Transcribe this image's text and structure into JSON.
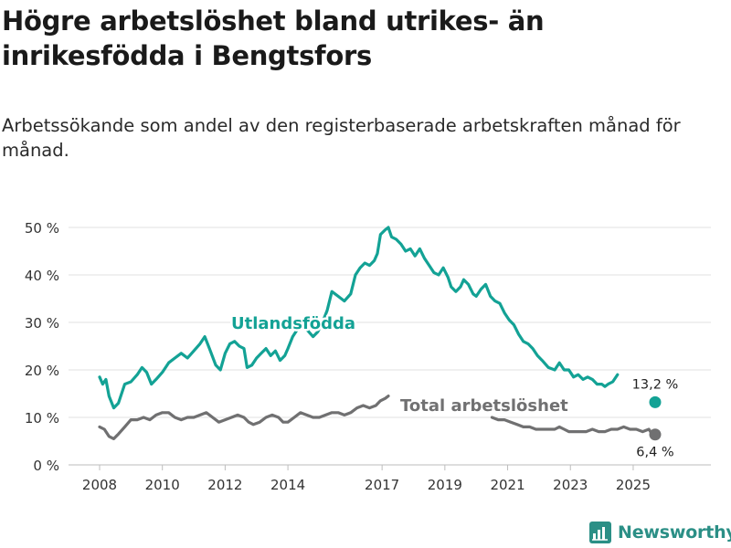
{
  "title": "Högre arbetslöshet bland utrikes- än inrikesfödda i Bengtsfors",
  "subtitle": "Arbetssökande som andel av den registerbaserade arbetskraften månad för månad.",
  "brand": "Newsworthy",
  "colors": {
    "foreign": "#13a295",
    "total": "#707071",
    "brand": "#2b8f86",
    "grid": "#e2e2e2"
  },
  "chart_data": {
    "type": "line",
    "title": "Högre arbetslöshet bland utrikes- än inrikesfödda i Bengtsfors",
    "xlabel": "",
    "ylabel": "",
    "x_ticks": [
      "2008",
      "2010",
      "2012",
      "2014",
      "2017",
      "2019",
      "2021",
      "2023",
      "2025"
    ],
    "y_ticks": [
      "0 %",
      "10 %",
      "20 %",
      "30 %",
      "40 %",
      "50 %"
    ],
    "y_tick_values": [
      0,
      10,
      20,
      30,
      40,
      50
    ],
    "xlim": [
      2007.4,
      2026.3
    ],
    "ylim": [
      0,
      50
    ],
    "series": [
      {
        "name": "Utlandsfödda",
        "end_label": "13,2 %",
        "end_point": [
          2025.7,
          13.2
        ],
        "points": [
          [
            2008.0,
            18.5
          ],
          [
            2008.1,
            17.0
          ],
          [
            2008.2,
            18.0
          ],
          [
            2008.3,
            14.5
          ],
          [
            2008.45,
            12.0
          ],
          [
            2008.6,
            13.0
          ],
          [
            2008.8,
            17.0
          ],
          [
            2009.0,
            17.5
          ],
          [
            2009.2,
            19.0
          ],
          [
            2009.35,
            20.5
          ],
          [
            2009.5,
            19.5
          ],
          [
            2009.65,
            17.0
          ],
          [
            2009.8,
            18.0
          ],
          [
            2010.0,
            19.5
          ],
          [
            2010.2,
            21.5
          ],
          [
            2010.4,
            22.5
          ],
          [
            2010.6,
            23.5
          ],
          [
            2010.8,
            22.5
          ],
          [
            2011.0,
            24.0
          ],
          [
            2011.2,
            25.5
          ],
          [
            2011.35,
            27.0
          ],
          [
            2011.5,
            24.5
          ],
          [
            2011.7,
            21.0
          ],
          [
            2011.85,
            20.0
          ],
          [
            2012.0,
            23.5
          ],
          [
            2012.15,
            25.5
          ],
          [
            2012.3,
            26.0
          ],
          [
            2012.45,
            25.0
          ],
          [
            2012.6,
            24.5
          ],
          [
            2012.7,
            20.5
          ],
          [
            2012.85,
            21.0
          ],
          [
            2013.0,
            22.5
          ],
          [
            2013.15,
            23.5
          ],
          [
            2013.3,
            24.5
          ],
          [
            2013.45,
            23.0
          ],
          [
            2013.6,
            24.0
          ],
          [
            2013.75,
            22.0
          ],
          [
            2013.9,
            23.0
          ],
          [
            2014.0,
            24.5
          ],
          [
            2014.15,
            27.0
          ],
          [
            2014.3,
            28.5
          ],
          [
            2014.45,
            29.5
          ],
          [
            2014.6,
            28.5
          ],
          [
            2014.8,
            27.0
          ],
          [
            2014.95,
            28.0
          ],
          [
            2015.1,
            30.0
          ],
          [
            2015.25,
            32.5
          ],
          [
            2015.4,
            36.5
          ],
          [
            2015.6,
            35.5
          ],
          [
            2015.8,
            34.5
          ],
          [
            2016.0,
            36.0
          ],
          [
            2016.15,
            40.0
          ],
          [
            2016.3,
            41.5
          ],
          [
            2016.45,
            42.5
          ],
          [
            2016.6,
            42.0
          ],
          [
            2016.75,
            43.0
          ],
          [
            2016.85,
            44.5
          ],
          [
            2016.95,
            48.5
          ],
          [
            2017.1,
            49.5
          ],
          [
            2017.2,
            50.0
          ],
          [
            2017.3,
            48.0
          ],
          [
            2017.45,
            47.5
          ],
          [
            2017.6,
            46.5
          ],
          [
            2017.75,
            45.0
          ],
          [
            2017.9,
            45.5
          ],
          [
            2018.05,
            44.0
          ],
          [
            2018.2,
            45.5
          ],
          [
            2018.35,
            43.5
          ],
          [
            2018.5,
            42.0
          ],
          [
            2018.65,
            40.5
          ],
          [
            2018.8,
            40.0
          ],
          [
            2018.95,
            41.5
          ],
          [
            2019.1,
            39.5
          ],
          [
            2019.2,
            37.5
          ],
          [
            2019.35,
            36.5
          ],
          [
            2019.5,
            37.5
          ],
          [
            2019.6,
            39.0
          ],
          [
            2019.75,
            38.0
          ],
          [
            2019.9,
            36.0
          ],
          [
            2020.0,
            35.5
          ],
          [
            2020.15,
            37.0
          ],
          [
            2020.3,
            38.0
          ],
          [
            2020.45,
            35.5
          ],
          [
            2020.6,
            34.5
          ],
          [
            2020.75,
            34.0
          ],
          [
            2020.9,
            32.0
          ],
          [
            2021.05,
            30.5
          ],
          [
            2021.2,
            29.5
          ],
          [
            2021.35,
            27.5
          ],
          [
            2021.5,
            26.0
          ],
          [
            2021.65,
            25.5
          ],
          [
            2021.8,
            24.5
          ],
          [
            2021.95,
            23.0
          ],
          [
            2022.1,
            22.0
          ],
          [
            2022.3,
            20.5
          ],
          [
            2022.5,
            20.0
          ],
          [
            2022.65,
            21.5
          ],
          [
            2022.8,
            20.0
          ],
          [
            2022.95,
            20.0
          ],
          [
            2023.1,
            18.5
          ],
          [
            2023.25,
            19.0
          ],
          [
            2023.4,
            18.0
          ],
          [
            2023.55,
            18.5
          ],
          [
            2023.7,
            18.0
          ],
          [
            2023.85,
            17.0
          ],
          [
            2024.0,
            17.0
          ],
          [
            2024.1,
            16.5
          ],
          [
            2024.2,
            17.0
          ],
          [
            2024.35,
            17.5
          ],
          [
            2024.5,
            19.0
          ]
        ]
      },
      {
        "name": "Total arbetslöshet",
        "end_label": "6,4 %",
        "end_point": [
          2025.7,
          6.4
        ],
        "points": [
          [
            2008.0,
            8.0
          ],
          [
            2008.15,
            7.5
          ],
          [
            2008.3,
            6.0
          ],
          [
            2008.45,
            5.5
          ],
          [
            2008.6,
            6.5
          ],
          [
            2008.8,
            8.0
          ],
          [
            2009.0,
            9.5
          ],
          [
            2009.2,
            9.5
          ],
          [
            2009.4,
            10.0
          ],
          [
            2009.6,
            9.5
          ],
          [
            2009.8,
            10.5
          ],
          [
            2010.0,
            11.0
          ],
          [
            2010.2,
            11.0
          ],
          [
            2010.4,
            10.0
          ],
          [
            2010.6,
            9.5
          ],
          [
            2010.8,
            10.0
          ],
          [
            2011.0,
            10.0
          ],
          [
            2011.2,
            10.5
          ],
          [
            2011.4,
            11.0
          ],
          [
            2011.6,
            10.0
          ],
          [
            2011.8,
            9.0
          ],
          [
            2012.0,
            9.5
          ],
          [
            2012.2,
            10.0
          ],
          [
            2012.4,
            10.5
          ],
          [
            2012.6,
            10.0
          ],
          [
            2012.75,
            9.0
          ],
          [
            2012.9,
            8.5
          ],
          [
            2013.1,
            9.0
          ],
          [
            2013.3,
            10.0
          ],
          [
            2013.5,
            10.5
          ],
          [
            2013.7,
            10.0
          ],
          [
            2013.85,
            9.0
          ],
          [
            2014.0,
            9.0
          ],
          [
            2014.2,
            10.0
          ],
          [
            2014.4,
            11.0
          ],
          [
            2014.6,
            10.5
          ],
          [
            2014.8,
            10.0
          ],
          [
            2015.0,
            10.0
          ],
          [
            2015.2,
            10.5
          ],
          [
            2015.4,
            11.0
          ],
          [
            2015.6,
            11.0
          ],
          [
            2015.8,
            10.5
          ],
          [
            2016.0,
            11.0
          ],
          [
            2016.2,
            12.0
          ],
          [
            2016.4,
            12.5
          ],
          [
            2016.6,
            12.0
          ],
          [
            2016.8,
            12.5
          ],
          [
            2016.95,
            13.5
          ],
          [
            2017.1,
            14.0
          ],
          [
            2017.2,
            14.5
          ]
        ]
      },
      {
        "name": "Total arbetslöshet (2020–2025)",
        "points": [
          [
            2020.5,
            10.0
          ],
          [
            2020.7,
            9.5
          ],
          [
            2020.9,
            9.5
          ],
          [
            2021.1,
            9.0
          ],
          [
            2021.3,
            8.5
          ],
          [
            2021.5,
            8.0
          ],
          [
            2021.7,
            8.0
          ],
          [
            2021.9,
            7.5
          ],
          [
            2022.1,
            7.5
          ],
          [
            2022.3,
            7.5
          ],
          [
            2022.5,
            7.5
          ],
          [
            2022.65,
            8.0
          ],
          [
            2022.8,
            7.5
          ],
          [
            2022.95,
            7.0
          ],
          [
            2023.1,
            7.0
          ],
          [
            2023.3,
            7.0
          ],
          [
            2023.5,
            7.0
          ],
          [
            2023.7,
            7.5
          ],
          [
            2023.9,
            7.0
          ],
          [
            2024.1,
            7.0
          ],
          [
            2024.3,
            7.5
          ],
          [
            2024.5,
            7.5
          ],
          [
            2024.7,
            8.0
          ],
          [
            2024.9,
            7.5
          ],
          [
            2025.1,
            7.5
          ],
          [
            2025.3,
            7.0
          ],
          [
            2025.5,
            7.5
          ],
          [
            2025.6,
            6.5
          ]
        ]
      }
    ],
    "annotations": [
      "Utlandsfödda",
      "Total arbetslöshet"
    ]
  }
}
